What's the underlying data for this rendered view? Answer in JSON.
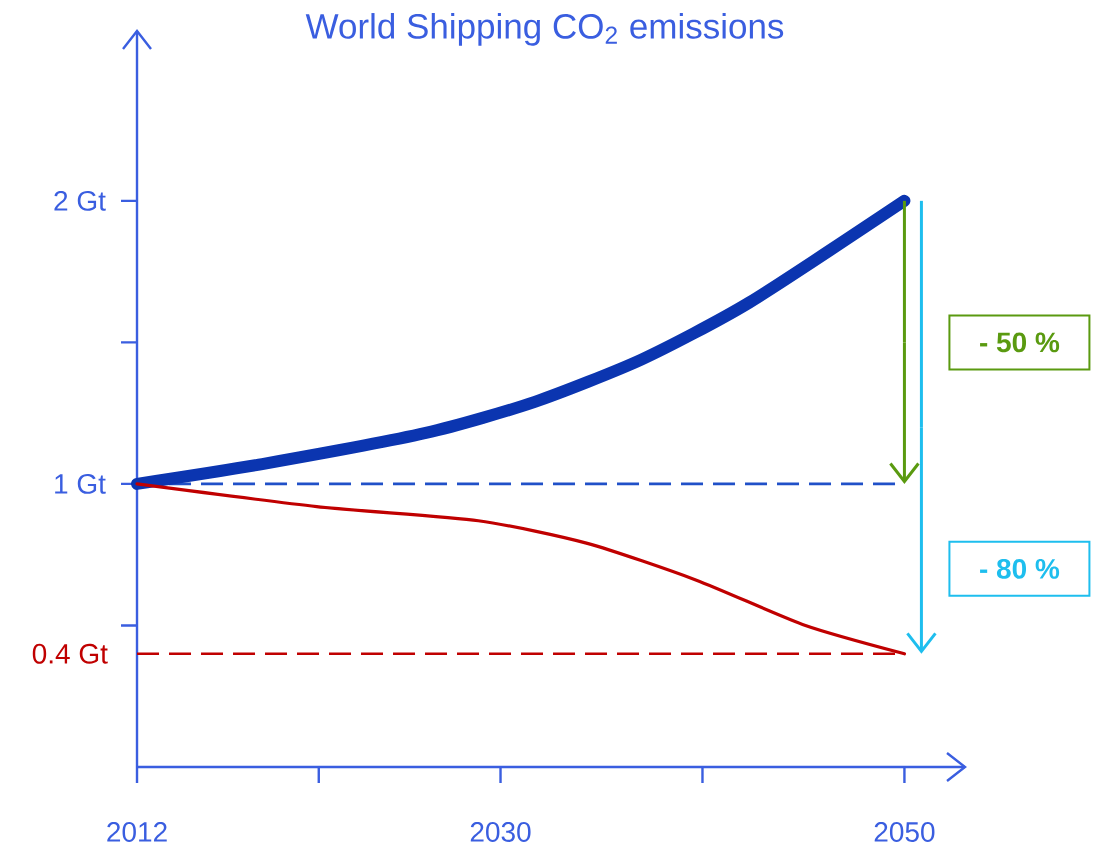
{
  "chart_data": {
    "type": "line",
    "title": "World Shipping CO$_{2}$ emissions",
    "series": [
      {
        "color": "#0b35b0",
        "line_style": "solid",
        "x": [
          2012,
          2018.2,
          2026.3,
          2031.7,
          2037,
          2042.3,
          2050
        ],
        "values": [
          1.0,
          1.07,
          1.18,
          1.29,
          1.44,
          1.64,
          2.0
        ]
      },
      {
        "color": "#c00000",
        "line_style": "solid",
        "x": [
          2012,
          2020.9,
          2028.9,
          2034.3,
          2039.7,
          2045.1,
          2050
        ],
        "values": [
          1.0,
          0.92,
          0.87,
          0.79,
          0.66,
          0.5,
          0.4
        ]
      }
    ],
    "xlim": [
      2012,
      2053
    ],
    "ylim": [
      0,
      2.6
    ],
    "xticks": [
      2012,
      {
        "value": 2021,
        "label": null
      },
      2030,
      {
        "value": 2040,
        "label": null
      },
      2050
    ],
    "yticks": [
      {
        "value": 0.5,
        "label": null
      },
      {
        "value": 1,
        "label": "1 Gt"
      },
      {
        "value": 1.5,
        "label": null
      },
      {
        "value": 2,
        "label": "2 Gt"
      }
    ],
    "ref_lines": [
      {
        "axis": "y",
        "value": 1,
        "color": "#2050c8",
        "line_style": "dashed"
      },
      {
        "axis": "y",
        "value": 0.4,
        "label": "0.4 Gt",
        "color": "#c00000",
        "line_style": "dashed"
      }
    ],
    "annotations": [
      "- 50 %",
      "- 80 %"
    ]
  }
}
